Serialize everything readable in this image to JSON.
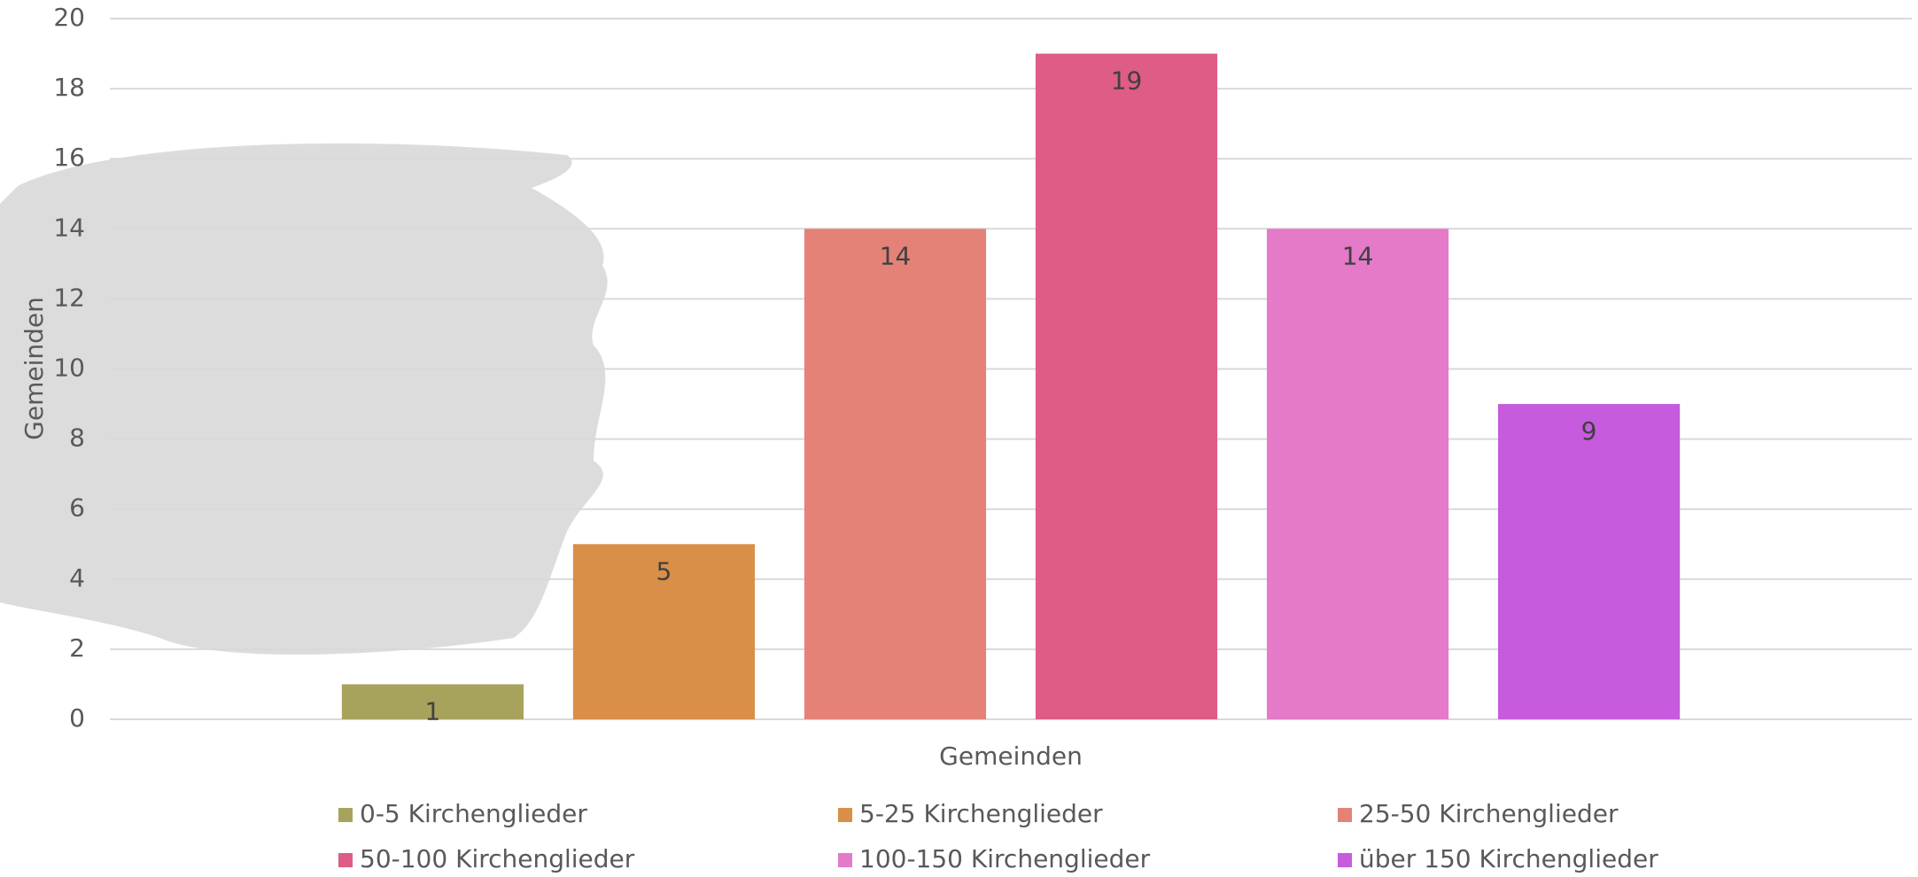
{
  "chart_data": {
    "type": "bar",
    "y_label": "Gemeinden",
    "categories": [
      "Gemeinden"
    ],
    "series": [
      {
        "name": "0-5 Kirchenglieder",
        "color": "#a8a35c",
        "values": [
          1
        ]
      },
      {
        "name": "5-25 Kirchenglieder",
        "color": "#d98f47",
        "values": [
          5
        ]
      },
      {
        "name": "25-50 Kirchenglieder",
        "color": "#e48277",
        "values": [
          14
        ]
      },
      {
        "name": "50-100 Kirchenglieder",
        "color": "#de5c85",
        "values": [
          19
        ]
      },
      {
        "name": "100-150 Kirchenglieder",
        "color": "#e47ac8",
        "values": [
          14
        ]
      },
      {
        "name": "über 150 Kirchenglieder",
        "color": "#c65bdd",
        "values": [
          9
        ]
      }
    ],
    "ylim": [
      0,
      20
    ],
    "yticks": [
      0,
      2,
      4,
      6,
      8,
      10,
      12,
      14,
      16,
      18,
      20
    ],
    "grid": true
  }
}
